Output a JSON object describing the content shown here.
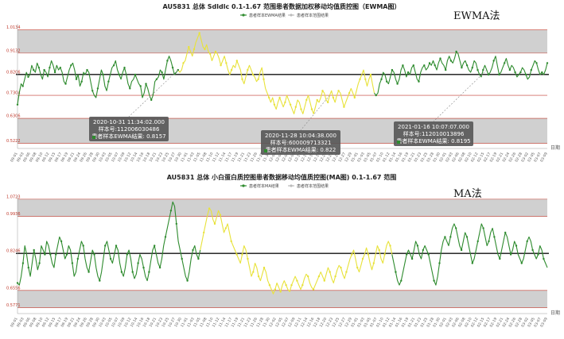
{
  "chart_data": [
    {
      "id": "ewma",
      "type": "line",
      "title": "AU5831 总体 Sdldlc 0.1-1.67 范围患者数据加权移动均值质控图（EWMA图）",
      "method_label": "EWMA法",
      "legend": [
        "患者样本EWMA结果",
        "患者样本范围结果"
      ],
      "xlabel": "日期",
      "y_ticks": [
        "1.0134",
        "0.9132",
        "0.8206",
        "0.7304",
        "0.6306",
        "0.5222"
      ],
      "target": 0.8206,
      "ylim": [
        0.5,
        1.04
      ],
      "bands": [
        [
          0.9132,
          1.0134
        ],
        [
          0.5222,
          0.6306
        ]
      ],
      "colors": {
        "green": "#2e8b2e",
        "yellow": "#e8e23a",
        "band": "#c8c8c8",
        "limit": "#c0392b",
        "tooltip": "#555555"
      },
      "segments": [
        {
          "color": "green",
          "from": 0,
          "to": 90
        },
        {
          "color": "yellow",
          "from": 90,
          "to": 200
        },
        {
          "color": "green",
          "from": 200,
          "to": 300
        }
      ],
      "values": [
        0.69,
        0.74,
        0.78,
        0.77,
        0.8,
        0.83,
        0.81,
        0.82,
        0.86,
        0.84,
        0.83,
        0.87,
        0.85,
        0.82,
        0.8,
        0.84,
        0.83,
        0.81,
        0.85,
        0.88,
        0.86,
        0.83,
        0.86,
        0.84,
        0.85,
        0.83,
        0.79,
        0.78,
        0.81,
        0.84,
        0.86,
        0.87,
        0.84,
        0.8,
        0.82,
        0.77,
        0.79,
        0.83,
        0.82,
        0.84,
        0.83,
        0.79,
        0.75,
        0.73,
        0.72,
        0.76,
        0.8,
        0.84,
        0.82,
        0.77,
        0.75,
        0.79,
        0.82,
        0.85,
        0.86,
        0.88,
        0.84,
        0.82,
        0.8,
        0.83,
        0.85,
        0.82,
        0.78,
        0.76,
        0.79,
        0.8,
        0.82,
        0.8,
        0.78,
        0.77,
        0.72,
        0.74,
        0.78,
        0.76,
        0.73,
        0.71,
        0.73,
        0.79,
        0.8,
        0.81,
        0.84,
        0.83,
        0.8,
        0.84,
        0.88,
        0.9,
        0.88,
        0.85,
        0.82,
        0.83,
        0.84,
        0.83,
        0.84,
        0.87,
        0.88,
        0.91,
        0.94,
        0.92,
        0.9,
        0.93,
        0.96,
        0.98,
        1.0,
        0.97,
        0.94,
        0.93,
        0.95,
        0.92,
        0.91,
        0.88,
        0.9,
        0.92,
        0.91,
        0.89,
        0.86,
        0.88,
        0.9,
        0.87,
        0.84,
        0.82,
        0.84,
        0.86,
        0.85,
        0.88,
        0.86,
        0.84,
        0.8,
        0.78,
        0.81,
        0.84,
        0.86,
        0.84,
        0.82,
        0.81,
        0.79,
        0.8,
        0.83,
        0.85,
        0.8,
        0.76,
        0.74,
        0.72,
        0.7,
        0.72,
        0.69,
        0.67,
        0.7,
        0.72,
        0.7,
        0.68,
        0.7,
        0.73,
        0.71,
        0.69,
        0.67,
        0.65,
        0.68,
        0.71,
        0.7,
        0.67,
        0.65,
        0.68,
        0.71,
        0.73,
        0.7,
        0.67,
        0.65,
        0.68,
        0.71,
        0.7,
        0.72,
        0.75,
        0.74,
        0.71,
        0.7,
        0.73,
        0.75,
        0.72,
        0.7,
        0.73,
        0.75,
        0.74,
        0.71,
        0.68,
        0.7,
        0.72,
        0.74,
        0.76,
        0.74,
        0.72,
        0.75,
        0.78,
        0.8,
        0.82,
        0.84,
        0.8,
        0.77,
        0.8,
        0.82,
        0.78,
        0.74,
        0.73,
        0.74,
        0.78,
        0.8,
        0.83,
        0.82,
        0.79,
        0.78,
        0.81,
        0.84,
        0.83,
        0.8,
        0.78,
        0.8,
        0.84,
        0.86,
        0.84,
        0.81,
        0.83,
        0.82,
        0.85,
        0.86,
        0.83,
        0.8,
        0.79,
        0.83,
        0.85,
        0.86,
        0.84,
        0.85,
        0.87,
        0.86,
        0.88,
        0.86,
        0.84,
        0.87,
        0.89,
        0.87,
        0.86,
        0.84,
        0.88,
        0.9,
        0.88,
        0.87,
        0.89,
        0.92,
        0.91,
        0.88,
        0.85,
        0.87,
        0.88,
        0.86,
        0.84,
        0.83,
        0.85,
        0.88,
        0.87,
        0.84,
        0.82,
        0.81,
        0.84,
        0.86,
        0.84,
        0.82,
        0.83,
        0.85,
        0.88,
        0.9,
        0.86,
        0.82,
        0.83,
        0.85,
        0.87,
        0.89,
        0.86,
        0.84,
        0.86,
        0.85,
        0.83,
        0.81,
        0.82,
        0.83,
        0.85,
        0.84,
        0.82,
        0.8,
        0.81,
        0.84,
        0.86,
        0.88,
        0.87,
        0.84,
        0.82,
        0.83,
        0.82,
        0.84,
        0.87
      ],
      "x_tick_labels": [
        "09-01",
        "09-03",
        "09-06",
        "09-08",
        "09-10",
        "09-12",
        "09-15",
        "09-17",
        "09-19",
        "09-21",
        "09-24",
        "09-26",
        "09-28",
        "09-30",
        "10-03",
        "10-05",
        "10-07",
        "10-09",
        "10-12",
        "10-14",
        "10-16",
        "10-18",
        "10-21",
        "10-23",
        "10-25",
        "10-27",
        "10-30",
        "11-01",
        "11-03",
        "11-05",
        "11-08",
        "11-10",
        "11-12",
        "11-14",
        "11-17",
        "11-19",
        "11-21",
        "11-23",
        "11-26",
        "11-28",
        "11-30",
        "12-02",
        "12-05",
        "12-07",
        "12-09",
        "12-11",
        "12-14",
        "12-16",
        "12-18",
        "12-20",
        "12-23",
        "12-25",
        "12-27",
        "12-29",
        "01-01",
        "01-03",
        "01-05",
        "01-07",
        "01-10",
        "01-12",
        "01-14",
        "01-16",
        "01-19",
        "01-21",
        "01-23",
        "01-25",
        "01-28",
        "01-30",
        "02-01",
        "02-03",
        "02-06",
        "02-08",
        "02-10",
        "02-12",
        "02-15",
        "02-17",
        "02-19",
        "02-21",
        "02-24",
        "02-26",
        "02-28",
        "03-02",
        "03-05",
        "03-07",
        "03-09"
      ],
      "tooltips": [
        {
          "time": "2020-10-31 11:34:02.000",
          "sample": "样本号:112006030486",
          "result": "患者样本EWMA结果: 0.8157",
          "anchor_index": 90
        },
        {
          "time": "2020-11-28 10:04:38.000",
          "sample": "样本号:600009713321",
          "result": "患者样本EWMA结果: 0.822",
          "anchor_index": 175
        },
        {
          "time": "2021-01-16 10:07:07.000",
          "sample": "样本号:112010013896",
          "result": "患者样本EWMA结果: 0.8195",
          "anchor_index": 263
        }
      ]
    },
    {
      "id": "ma",
      "type": "line",
      "title": "AU5831 总体 小白蛋白质控图患者数据移动均值质控图(MA图) 0.1-1.67 范围",
      "method_label": "MA法",
      "legend": [
        "患者样本MA结果",
        "患者样本范围结果"
      ],
      "xlabel": "日期",
      "y_ticks": [
        "1.0723",
        "0.9936",
        "0.8246",
        "0.6556",
        "0.5771"
      ],
      "target": 0.8246,
      "ylim": [
        0.55,
        1.09
      ],
      "bands": [
        [
          0.9936,
          1.0723
        ],
        [
          0.5771,
          0.6556
        ]
      ],
      "colors": {
        "green": "#2e8b2e",
        "yellow": "#e8e23a",
        "band": "#c8c8c8",
        "limit": "#c0392b"
      },
      "segments": [
        {
          "color": "green",
          "from": 0,
          "to": 100
        },
        {
          "color": "yellow",
          "from": 100,
          "to": 205
        },
        {
          "color": "green",
          "from": 205,
          "to": 300
        }
      ],
      "values": [
        0.69,
        0.68,
        0.72,
        0.78,
        0.86,
        0.82,
        0.76,
        0.72,
        0.78,
        0.84,
        0.8,
        0.75,
        0.78,
        0.86,
        0.84,
        0.82,
        0.88,
        0.86,
        0.82,
        0.78,
        0.76,
        0.82,
        0.86,
        0.9,
        0.88,
        0.84,
        0.8,
        0.82,
        0.86,
        0.84,
        0.78,
        0.72,
        0.74,
        0.8,
        0.84,
        0.88,
        0.86,
        0.8,
        0.76,
        0.74,
        0.79,
        0.84,
        0.82,
        0.76,
        0.72,
        0.7,
        0.74,
        0.8,
        0.86,
        0.88,
        0.84,
        0.8,
        0.78,
        0.82,
        0.86,
        0.84,
        0.78,
        0.74,
        0.72,
        0.76,
        0.82,
        0.84,
        0.8,
        0.74,
        0.71,
        0.73,
        0.78,
        0.82,
        0.8,
        0.76,
        0.72,
        0.7,
        0.74,
        0.79,
        0.84,
        0.86,
        0.82,
        0.78,
        0.76,
        0.8,
        0.86,
        0.9,
        0.94,
        0.98,
        1.02,
        1.06,
        1.04,
        0.96,
        0.88,
        0.84,
        0.8,
        0.76,
        0.72,
        0.7,
        0.74,
        0.8,
        0.84,
        0.86,
        0.82,
        0.8,
        0.84,
        0.88,
        0.92,
        0.96,
        1.0,
        1.03,
        1.02,
        0.98,
        0.96,
        0.99,
        1.02,
        1.0,
        0.96,
        0.92,
        0.94,
        0.96,
        0.92,
        0.88,
        0.86,
        0.84,
        0.82,
        0.8,
        0.78,
        0.82,
        0.86,
        0.84,
        0.8,
        0.76,
        0.72,
        0.74,
        0.78,
        0.76,
        0.72,
        0.7,
        0.73,
        0.76,
        0.74,
        0.7,
        0.68,
        0.66,
        0.64,
        0.66,
        0.69,
        0.67,
        0.65,
        0.68,
        0.7,
        0.68,
        0.66,
        0.65,
        0.68,
        0.7,
        0.72,
        0.7,
        0.68,
        0.66,
        0.68,
        0.71,
        0.73,
        0.72,
        0.69,
        0.67,
        0.66,
        0.68,
        0.7,
        0.72,
        0.74,
        0.72,
        0.7,
        0.73,
        0.76,
        0.74,
        0.71,
        0.69,
        0.72,
        0.75,
        0.77,
        0.76,
        0.73,
        0.71,
        0.74,
        0.77,
        0.8,
        0.82,
        0.84,
        0.8,
        0.76,
        0.74,
        0.77,
        0.8,
        0.82,
        0.85,
        0.82,
        0.78,
        0.75,
        0.78,
        0.82,
        0.86,
        0.84,
        0.8,
        0.78,
        0.82,
        0.86,
        0.88,
        0.86,
        0.82,
        0.78,
        0.74,
        0.7,
        0.68,
        0.7,
        0.74,
        0.78,
        0.82,
        0.84,
        0.82,
        0.8,
        0.84,
        0.88,
        0.86,
        0.82,
        0.8,
        0.84,
        0.86,
        0.84,
        0.82,
        0.78,
        0.74,
        0.7,
        0.68,
        0.72,
        0.78,
        0.84,
        0.88,
        0.9,
        0.88,
        0.86,
        0.9,
        0.94,
        0.96,
        0.94,
        0.9,
        0.86,
        0.84,
        0.88,
        0.92,
        0.9,
        0.86,
        0.82,
        0.78,
        0.8,
        0.84,
        0.88,
        0.92,
        0.96,
        0.94,
        0.9,
        0.86,
        0.88,
        0.92,
        0.94,
        0.9,
        0.86,
        0.82,
        0.8,
        0.84,
        0.88,
        0.92,
        0.9,
        0.86,
        0.82,
        0.84,
        0.88,
        0.86,
        0.82,
        0.8,
        0.78,
        0.8,
        0.84,
        0.88,
        0.9,
        0.88,
        0.84,
        0.82,
        0.8,
        0.82,
        0.86,
        0.84,
        0.8,
        0.78,
        0.76
      ],
      "x_tick_labels": [
        "09-01",
        "09-03",
        "09-06",
        "09-08",
        "09-10",
        "09-12",
        "09-15",
        "09-17",
        "09-19",
        "09-21",
        "09-24",
        "09-26",
        "09-28",
        "09-30",
        "10-03",
        "10-05",
        "10-07",
        "10-09",
        "10-12",
        "10-14",
        "10-16",
        "10-18",
        "10-21",
        "10-23",
        "10-25",
        "10-27",
        "10-30",
        "11-01",
        "11-03",
        "11-05",
        "11-08",
        "11-10",
        "11-12",
        "11-14",
        "11-17",
        "11-19",
        "11-21",
        "11-23",
        "11-26",
        "11-28",
        "11-30",
        "12-02",
        "12-05",
        "12-07",
        "12-09",
        "12-11",
        "12-14",
        "12-16",
        "12-18",
        "12-20",
        "12-23",
        "12-25",
        "12-27",
        "12-29",
        "01-01",
        "01-03",
        "01-05",
        "01-07",
        "01-10",
        "01-12",
        "01-14",
        "01-16",
        "01-19",
        "01-21",
        "01-23",
        "01-25",
        "01-28",
        "01-30",
        "02-01",
        "02-03",
        "02-06",
        "02-08",
        "02-10",
        "02-12",
        "02-15",
        "02-17",
        "02-19",
        "02-21",
        "02-24",
        "02-26",
        "02-28",
        "03-02",
        "03-05",
        "03-07",
        "03-09"
      ],
      "tooltips": []
    }
  ]
}
